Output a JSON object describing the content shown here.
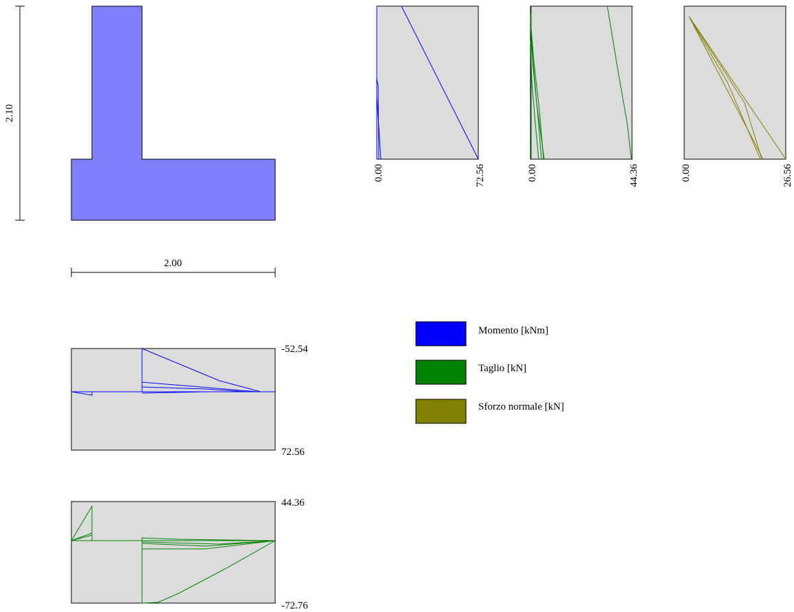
{
  "section": {
    "height_label": "2.10",
    "width_label": "2.00",
    "fill_color": "#8080ff"
  },
  "vertical_plots": [
    {
      "name": "momento",
      "min_label": "0.00",
      "max_label": "72.56",
      "color": "#0000ff"
    },
    {
      "name": "taglio",
      "min_label": "0.00",
      "max_label": "44.36",
      "color": "#008000"
    },
    {
      "name": "sforzo",
      "min_label": "0.00",
      "max_label": "26.56",
      "color": "#808000"
    }
  ],
  "horizontal_plots": [
    {
      "name": "momento",
      "top_label": "-52.54",
      "bottom_label": "72.56",
      "color": "#0000ff"
    },
    {
      "name": "taglio",
      "top_label": "44.36",
      "bottom_label": "-72.76",
      "color": "#008000"
    }
  ],
  "legend": {
    "items": [
      {
        "label": "Momento [kNm]",
        "color": "#0000ff"
      },
      {
        "label": "Taglio [kN]",
        "color": "#008000"
      },
      {
        "label": "Sforzo normale [kN]",
        "color": "#808000"
      }
    ]
  }
}
